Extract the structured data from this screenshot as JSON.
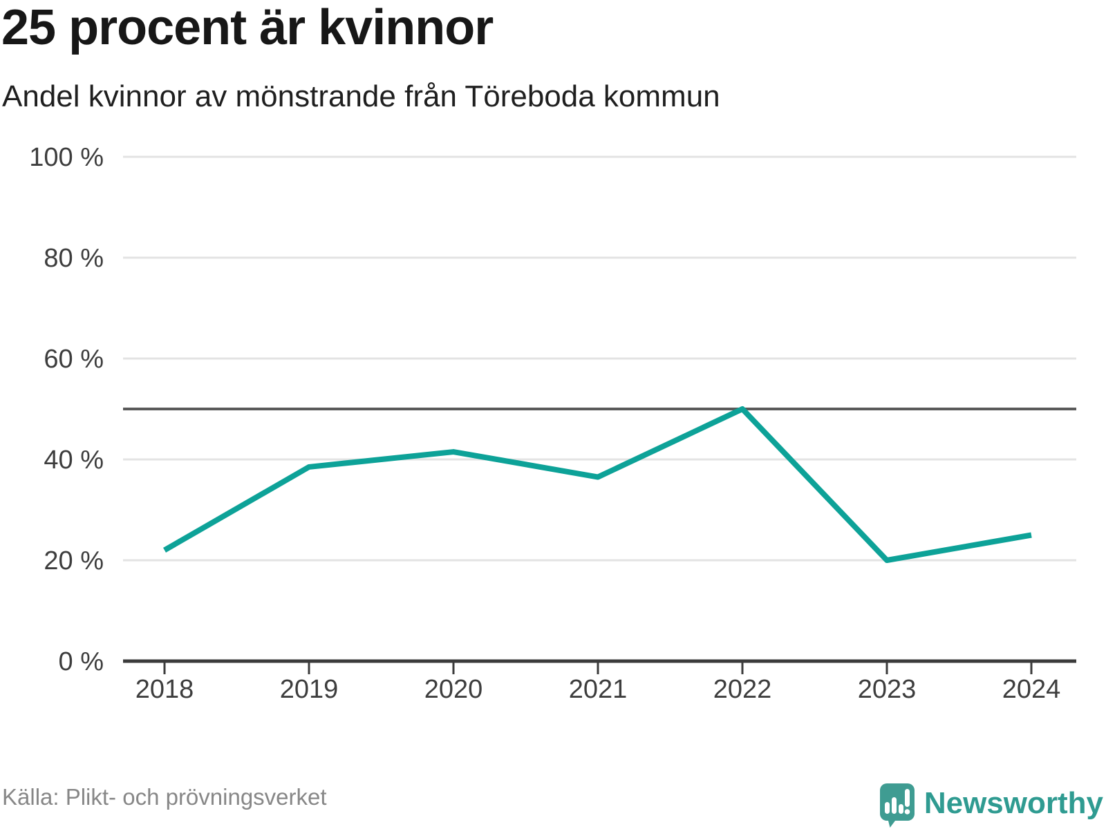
{
  "header": {
    "title": "25 procent är kvinnor",
    "subtitle": "Andel kvinnor av mönstrande från Töreboda kommun"
  },
  "chart_data": {
    "type": "line",
    "title": "25 procent är kvinnor",
    "subtitle": "Andel kvinnor av mönstrande från Töreboda kommun",
    "x": [
      "2018",
      "2019",
      "2020",
      "2021",
      "2022",
      "2023",
      "2024"
    ],
    "series": [
      {
        "name": "Andel kvinnor av mönstrande",
        "values": [
          22,
          38.5,
          41.5,
          36.5,
          50,
          20,
          25
        ]
      }
    ],
    "unit": "%",
    "xlabel": "",
    "ylabel": "",
    "ylim": [
      0,
      100
    ],
    "yticks": [
      {
        "value": 0,
        "label": "0 %"
      },
      {
        "value": 20,
        "label": "20 %"
      },
      {
        "value": 40,
        "label": "40 %"
      },
      {
        "value": 60,
        "label": "60 %"
      },
      {
        "value": 80,
        "label": "80 %"
      },
      {
        "value": 100,
        "label": "100 %"
      }
    ],
    "reference_line": {
      "value": 50
    },
    "grid": "horizontal",
    "legend": "none",
    "colors": {
      "line": "#0da298",
      "gridline": "#e3e3e3",
      "reference_line": "#5a5a5a",
      "axis": "#3b3b3b",
      "tick_label": "#3d3d3d"
    }
  },
  "footer": {
    "source": "Källa: Plikt- och prövningsverket",
    "brand": "Newsworthy",
    "brand_color": "#2f9b91"
  }
}
